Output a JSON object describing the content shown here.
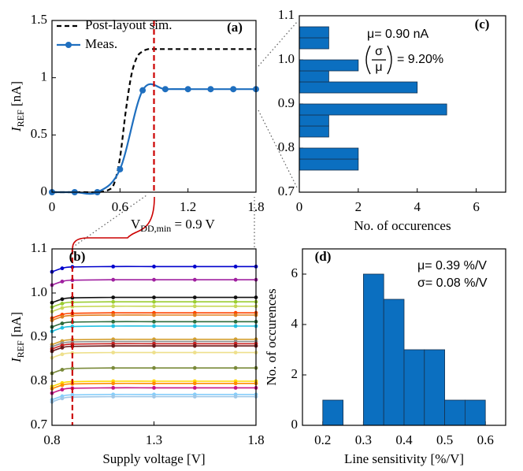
{
  "chart_data": [
    {
      "type": "line",
      "label": "(a)",
      "ylabel": {
        "main": "I",
        "sub": "REF",
        "rest": " [nA]"
      },
      "xlim": [
        0,
        1.8
      ],
      "xticks": [
        0,
        0.6,
        1.2,
        1.8
      ],
      "ylim": [
        0,
        1.5
      ],
      "yticks": [
        0,
        0.5,
        1,
        1.5
      ],
      "legend": "upper left",
      "series": [
        {
          "name": "Post-layout sim.",
          "color": "#000000",
          "dash": true,
          "marker": false,
          "x": [
            0,
            0.1,
            0.2,
            0.3,
            0.4,
            0.5,
            0.55,
            0.6,
            0.65,
            0.7,
            0.75,
            0.8,
            0.85,
            0.9,
            1.0,
            1.2,
            1.4,
            1.6,
            1.8
          ],
          "values": [
            0,
            0,
            0,
            0,
            0,
            0.02,
            0.08,
            0.3,
            0.7,
            1.02,
            1.18,
            1.23,
            1.25,
            1.25,
            1.25,
            1.25,
            1.25,
            1.25,
            1.25
          ]
        },
        {
          "name": "Meas.",
          "color": "#1f6fbf",
          "dash": false,
          "marker": true,
          "x": [
            0,
            0.2,
            0.4,
            0.6,
            0.8,
            1.0,
            1.2,
            1.4,
            1.6,
            1.8
          ],
          "values": [
            0,
            0,
            0,
            0.2,
            0.89,
            0.9,
            0.9,
            0.9,
            0.9,
            0.9
          ]
        }
      ],
      "vline": {
        "value": 0.9,
        "color": "#cc0000"
      },
      "annotation": {
        "main": "V",
        "sub": "DD,min",
        "rest": " = 0.9 V"
      }
    },
    {
      "type": "line",
      "label": "(b)",
      "xlabel": "Supply voltage [V]",
      "ylabel": {
        "main": "I",
        "sub": "REF",
        "rest": " [nA]"
      },
      "xlim": [
        0.8,
        1.8
      ],
      "xticks": [
        0.8,
        1.3,
        1.8
      ],
      "ylim": [
        0.7,
        1.1
      ],
      "yticks": [
        0.7,
        0.8,
        0.9,
        {
          "value": 1,
          "label": "1.0"
        },
        1.1
      ],
      "vline": {
        "value": 0.9,
        "color": "#cc0000"
      },
      "x": [
        0.8,
        0.85,
        0.9,
        1.1,
        1.3,
        1.5,
        1.7,
        1.8
      ],
      "series": [
        {
          "color": "#0000cc",
          "marker": true,
          "values": [
            1.048,
            1.056,
            1.059,
            1.06,
            1.06,
            1.06,
            1.06,
            1.06
          ]
        },
        {
          "color": "#a020a0",
          "marker": true,
          "values": [
            1.018,
            1.026,
            1.029,
            1.03,
            1.03,
            1.03,
            1.03,
            1.03
          ]
        },
        {
          "color": "#111111",
          "marker": true,
          "values": [
            0.978,
            0.986,
            0.989,
            0.99,
            0.99,
            0.99,
            0.99,
            0.99
          ]
        },
        {
          "color": "#9acd32",
          "marker": true,
          "values": [
            0.968,
            0.976,
            0.979,
            0.98,
            0.98,
            0.98,
            0.98,
            0.98
          ]
        },
        {
          "color": "#c8d85a",
          "marker": true,
          "values": [
            0.958,
            0.966,
            0.969,
            0.97,
            0.97,
            0.97,
            0.97,
            0.97
          ]
        },
        {
          "color": "#ff4500",
          "marker": true,
          "values": [
            0.943,
            0.951,
            0.954,
            0.955,
            0.955,
            0.955,
            0.955,
            0.955
          ]
        },
        {
          "color": "#e08020",
          "marker": true,
          "values": [
            0.938,
            0.946,
            0.949,
            0.95,
            0.95,
            0.95,
            0.95,
            0.95
          ]
        },
        {
          "color": "#2e6b3a",
          "marker": true,
          "values": [
            0.923,
            0.931,
            0.934,
            0.935,
            0.935,
            0.935,
            0.935,
            0.935
          ]
        },
        {
          "color": "#22c0e0",
          "marker": true,
          "values": [
            0.913,
            0.921,
            0.924,
            0.925,
            0.925,
            0.925,
            0.925,
            0.925
          ]
        },
        {
          "color": "#d4a030",
          "marker": true,
          "values": [
            0.883,
            0.891,
            0.894,
            0.895,
            0.895,
            0.895,
            0.895,
            0.895
          ]
        },
        {
          "color": "#909090",
          "marker": true,
          "values": [
            0.878,
            0.886,
            0.889,
            0.89,
            0.89,
            0.89,
            0.89,
            0.89
          ]
        },
        {
          "color": "#cc2020",
          "marker": true,
          "values": [
            0.873,
            0.881,
            0.884,
            0.885,
            0.885,
            0.885,
            0.885,
            0.885
          ]
        },
        {
          "color": "#6b1a1a",
          "marker": true,
          "values": [
            0.868,
            0.876,
            0.879,
            0.88,
            0.88,
            0.88,
            0.88,
            0.88
          ]
        },
        {
          "color": "#eee08c",
          "marker": true,
          "values": [
            0.853,
            0.861,
            0.864,
            0.865,
            0.865,
            0.865,
            0.865,
            0.865
          ]
        },
        {
          "color": "#7a8a3a",
          "marker": true,
          "values": [
            0.818,
            0.826,
            0.829,
            0.83,
            0.83,
            0.83,
            0.83,
            0.83
          ]
        },
        {
          "color": "#ffd700",
          "marker": true,
          "values": [
            0.788,
            0.796,
            0.799,
            0.8,
            0.8,
            0.8,
            0.8,
            0.8
          ]
        },
        {
          "color": "#ff8c00",
          "marker": true,
          "values": [
            0.783,
            0.791,
            0.794,
            0.795,
            0.795,
            0.795,
            0.795,
            0.795
          ]
        },
        {
          "color": "#c71585",
          "marker": true,
          "values": [
            0.773,
            0.781,
            0.784,
            0.785,
            0.785,
            0.785,
            0.785,
            0.785
          ]
        },
        {
          "color": "#87cefa",
          "marker": true,
          "values": [
            0.758,
            0.766,
            0.769,
            0.77,
            0.77,
            0.77,
            0.77,
            0.77
          ]
        },
        {
          "color": "#a0c8e8",
          "marker": true,
          "values": [
            0.753,
            0.761,
            0.764,
            0.765,
            0.765,
            0.765,
            0.765,
            0.765
          ]
        }
      ]
    },
    {
      "type": "histogram",
      "orientation": "horizontal",
      "label": "(c)",
      "xlabel": "No. of occurences",
      "xlim": [
        0,
        7
      ],
      "xticks": [
        0,
        2,
        4,
        6
      ],
      "ylim": [
        0.7,
        1.1
      ],
      "yticks": [
        0.7,
        0.8,
        0.9,
        {
          "value": 1,
          "label": "1.0"
        },
        1.1
      ],
      "color": "#0b6fc0",
      "bins": [
        0.75,
        0.775,
        0.8,
        0.825,
        0.85,
        0.875,
        0.9,
        0.925,
        0.95,
        0.975,
        1.0,
        1.025,
        1.05,
        1.075
      ],
      "counts": [
        2,
        2,
        0,
        1,
        1,
        5,
        0,
        4,
        1,
        2,
        0,
        1,
        1
      ],
      "annotations": {
        "mean": "μ= 0.90 nA",
        "ratio_numerator": "σ",
        "ratio_denominator": "μ",
        "ratio": "= 9.20%"
      }
    },
    {
      "type": "histogram",
      "orientation": "vertical",
      "label": "(d)",
      "xlabel": "Line sensitivity [%/V]",
      "ylabel": "No. of occurences",
      "xlim": [
        0.15,
        0.65
      ],
      "xticks": [
        0.2,
        0.3,
        0.4,
        0.5,
        0.6
      ],
      "ylim": [
        0,
        7
      ],
      "yticks": [
        0,
        2,
        4,
        6
      ],
      "color": "#0b6fc0",
      "bins": [
        0.2,
        0.25,
        0.3,
        0.35,
        0.4,
        0.45,
        0.5,
        0.55,
        0.6
      ],
      "counts": [
        1,
        0,
        6,
        5,
        3,
        3,
        1,
        1
      ],
      "annotations": {
        "mean": "μ= 0.39 %/V",
        "std": "σ= 0.08 %/V"
      }
    }
  ]
}
